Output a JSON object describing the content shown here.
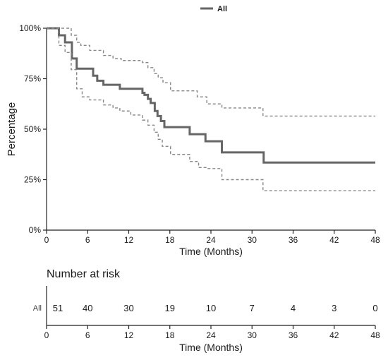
{
  "chart_data": {
    "type": "line",
    "subtype": "kaplan-meier",
    "title": "",
    "xlabel": "Time (Months)",
    "ylabel": "Percentage",
    "xlim": [
      0,
      48
    ],
    "ylim": [
      0,
      100
    ],
    "x_ticks": [
      0,
      6,
      12,
      18,
      24,
      30,
      36,
      42,
      48
    ],
    "x_tick_labels": [
      "0",
      "6",
      "12",
      "18",
      "24",
      "30",
      "36",
      "42",
      "48"
    ],
    "y_ticks": [
      0,
      25,
      50,
      75,
      100
    ],
    "y_tick_labels": [
      "0%",
      "25%",
      "50%",
      "75%",
      "100%"
    ],
    "grid": false,
    "legend": {
      "position": "top-center",
      "entries": [
        "All"
      ]
    },
    "series": [
      {
        "name": "All",
        "role": "estimate",
        "color": "#666666",
        "style": "solid",
        "x": [
          0,
          1.8,
          2.7,
          3.7,
          4.4,
          5.5,
          6.0,
          6.8,
          7.4,
          8.3,
          9.6,
          10.7,
          11.6,
          12.3,
          14.0,
          14.3,
          14.8,
          15.2,
          15.8,
          16.2,
          16.7,
          17.2,
          18.1,
          20.9,
          22.1,
          23.2,
          25.6,
          31.7,
          48
        ],
        "y": [
          100,
          96.5,
          93,
          85,
          80,
          80,
          80,
          76.5,
          74,
          72,
          72,
          70,
          70,
          70,
          68,
          67,
          65,
          63,
          59,
          56.5,
          54,
          51,
          51,
          47.5,
          47.5,
          44,
          38.5,
          33.5,
          33.5
        ]
      },
      {
        "name": "",
        "role": "upper-ci",
        "color": "#888888",
        "style": "dashed",
        "x": [
          0,
          3.6,
          4.4,
          5.0,
          6.3,
          8.3,
          9.7,
          10.9,
          12.3,
          14.0,
          14.8,
          15.7,
          16.3,
          17.0,
          18.1,
          20.9,
          22.0,
          23.4,
          25.6,
          31.6,
          48
        ],
        "y": [
          100,
          96.5,
          93,
          91.5,
          89,
          86.5,
          85,
          84,
          84,
          83,
          80.5,
          77.5,
          75.5,
          73,
          69,
          69,
          66,
          62.5,
          60.5,
          56.5,
          56.5
        ]
      },
      {
        "name": "",
        "role": "lower-ci",
        "color": "#888888",
        "style": "dashed",
        "x": [
          0,
          1.8,
          2.7,
          3.6,
          4.4,
          5.2,
          6.3,
          8.3,
          9.7,
          10.7,
          12.3,
          14.0,
          14.8,
          15.7,
          16.3,
          16.9,
          18.1,
          20.9,
          22.2,
          23.4,
          25.6,
          31.6,
          48
        ],
        "y": [
          100,
          91.5,
          88,
          79.5,
          70,
          66,
          64.5,
          62,
          60.5,
          59,
          57,
          54.5,
          52,
          48.5,
          45,
          41.5,
          37.5,
          34,
          31,
          30.5,
          25,
          19.5,
          19.5
        ]
      }
    ],
    "risk_table": {
      "title": "Number at risk",
      "row_label": "All",
      "xlabel": "Time (Months)",
      "times": [
        0,
        6,
        12,
        18,
        24,
        30,
        36,
        42,
        48
      ],
      "counts": [
        "51",
        "40",
        "30",
        "19",
        "10",
        "7",
        "4",
        "3",
        "0"
      ]
    }
  }
}
